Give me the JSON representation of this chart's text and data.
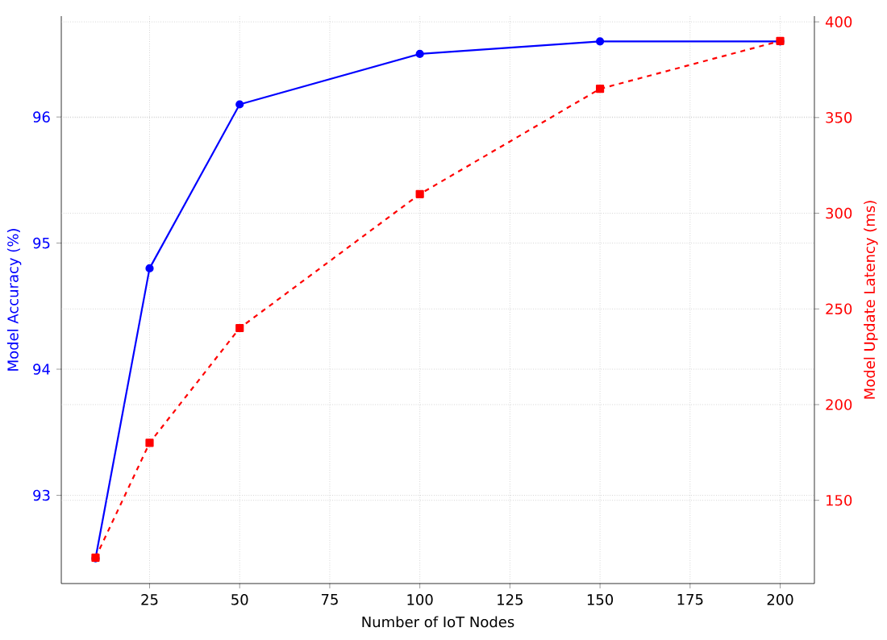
{
  "chart_data": {
    "type": "line",
    "xlabel": "Number of IoT Nodes",
    "ylabel": "Model Accuracy (%)",
    "y2label": "Model Update Latency (ms)",
    "x": [
      10,
      25,
      50,
      100,
      150,
      200
    ],
    "series": [
      {
        "color": "#0000ff",
        "values": [
          92.5,
          94.8,
          96.1,
          96.5,
          96.6,
          96.6
        ],
        "marker": "circle",
        "line_style": "solid"
      },
      {
        "color": "#ff0000",
        "values": [
          120,
          180,
          240,
          310,
          365,
          390
        ],
        "axis": "y2",
        "marker": "square",
        "line_style": "dashed"
      }
    ],
    "xlim": [
      0.5,
      209.5
    ],
    "xticks": [
      25,
      50,
      75,
      100,
      125,
      150,
      175,
      200
    ],
    "ylim": [
      92.3,
      96.8
    ],
    "yticks": [
      93,
      94,
      95,
      96
    ],
    "y2lim": [
      106.5,
      403
    ],
    "y2ticks": [
      150,
      200,
      250,
      300,
      350,
      400
    ],
    "grid": true
  }
}
